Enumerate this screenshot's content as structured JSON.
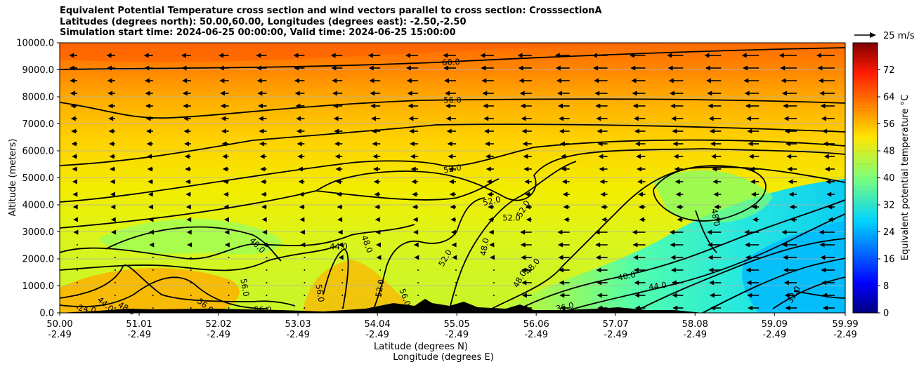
{
  "chart_data": {
    "type": "heatmap",
    "title_lines": [
      "Equivalent Potential Temperature cross section and wind vectors parallel to cross section: CrosssectionA",
      "Latitudes (degrees north): 50.00,60.00, Longitudes (degrees east): -2.50,-2.50",
      "Simulation start time: 2024-06-25 00:00:00, Valid time: 2024-06-25 15:00:00"
    ],
    "ylabel": "Altitude (meters)",
    "xlabel_lat": "Latitude (degrees N)",
    "xlabel_lon": "Longitude (degrees E)",
    "ylim": [
      0,
      10000
    ],
    "xlim": [
      50.0,
      59.99
    ],
    "y_ticks": [
      "0.0",
      "1000.0",
      "2000.0",
      "3000.0",
      "4000.0",
      "5000.0",
      "6000.0",
      "7000.0",
      "8000.0",
      "9000.0",
      "10000.0"
    ],
    "x_ticks_lat": [
      "50.00",
      "51.01",
      "52.02",
      "53.03",
      "54.04",
      "55.05",
      "56.06",
      "57.07",
      "58.08",
      "59.09",
      "59.99"
    ],
    "x_ticks_lon": [
      "-2.49",
      "-2.49",
      "-2.49",
      "-2.49",
      "-2.49",
      "-2.49",
      "-2.49",
      "-2.49",
      "-2.49",
      "-2.49",
      "-2.49"
    ],
    "colorbar": {
      "label": "Equivalent potential temperature $^\\circ$C",
      "label_display": "Equivalent potential temperature °C",
      "range": [
        0,
        80
      ],
      "ticks": [
        "0",
        "8",
        "16",
        "24",
        "32",
        "40",
        "48",
        "56",
        "64",
        "72"
      ],
      "colormap": "jet"
    },
    "quiver_key": "25 m/s",
    "grid": "horizontal",
    "contour_labels": [
      "60.0",
      "56.0",
      "52.0",
      "52.0",
      "52.0",
      "52.0",
      "40.0",
      "44.0",
      "48.0",
      "52.0",
      "48.0",
      "48.0",
      "48.0",
      "48.0",
      "40.0",
      "44.0",
      "36.0",
      "32.0",
      "24.0",
      "44.0",
      "48.0",
      "56.0",
      "52.0",
      "56.0",
      "56.0",
      "56.0",
      "56.0"
    ],
    "surface_series": {
      "name": "terrain",
      "x": [
        54.5,
        54.6,
        54.7,
        54.75,
        54.85,
        55.0,
        55.3,
        55.6,
        55.75,
        55.9,
        56.0,
        56.3,
        56.5,
        56.7,
        57.0,
        57.5,
        58.0,
        58.5
      ],
      "y": [
        0,
        200,
        150,
        300,
        450,
        200,
        100,
        50,
        150,
        300,
        200,
        100,
        120,
        80,
        200,
        100,
        80,
        0
      ]
    }
  }
}
